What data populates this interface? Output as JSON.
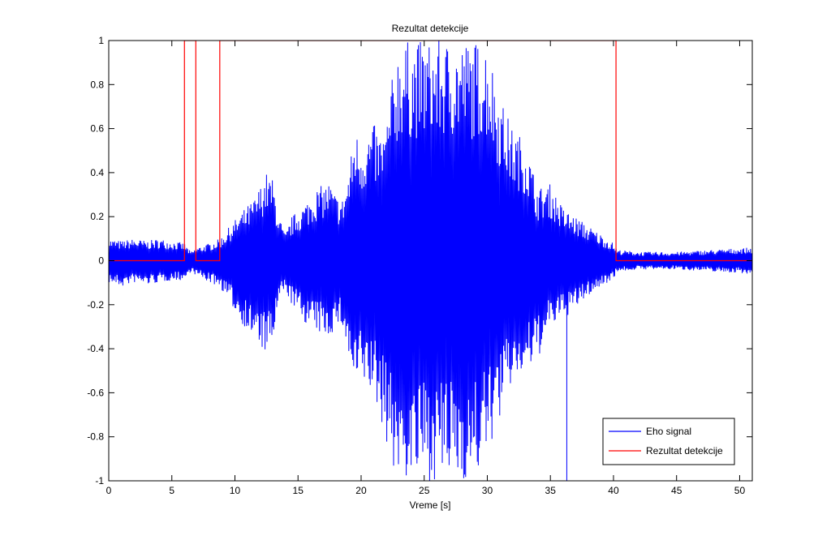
{
  "chart_data": {
    "type": "line",
    "title": "Rezultat detekcije",
    "xlabel": "Vreme [s]",
    "ylabel": "",
    "xlim": [
      0,
      51
    ],
    "ylim": [
      -1,
      1
    ],
    "x_ticks": [
      0,
      5,
      10,
      15,
      20,
      25,
      30,
      35,
      40,
      45,
      50
    ],
    "x_tick_labels": [
      "0",
      "5",
      "10",
      "15",
      "20",
      "25",
      "30",
      "35",
      "40",
      "45",
      "50"
    ],
    "y_ticks": [
      -1,
      -0.8,
      -0.6,
      -0.4,
      -0.2,
      0,
      0.2,
      0.4,
      0.6,
      0.8,
      1
    ],
    "y_tick_labels": [
      "-1",
      "-0.8",
      "-0.6",
      "-0.4",
      "-0.2",
      "0",
      "0.2",
      "0.4",
      "0.6",
      "0.8",
      "1"
    ],
    "grid": false,
    "legend_position": "bottom-right",
    "series": [
      {
        "name": "Eho signal",
        "color": "#0000ff",
        "style": "dense oscillating signal (envelope shown)",
        "envelope": {
          "x": [
            0,
            1,
            2,
            3,
            4,
            5,
            6,
            6.5,
            7,
            8,
            8.8,
            9.5,
            10.5,
            11.5,
            12.5,
            13.0,
            13.5,
            14.0,
            14.5,
            15.5,
            16.5,
            17.5,
            18.0,
            18.5,
            19.0,
            19.5,
            20.0,
            21.0,
            21.5,
            22.0,
            22.5,
            23.0,
            23.5,
            24.0,
            25.0,
            26.0,
            27.0,
            28.0,
            29.0,
            30.0,
            31.0,
            32.0,
            33.0,
            34.0,
            35.0,
            36.0,
            37.0,
            38.0,
            39.0,
            40.0,
            40.3,
            42,
            45,
            48,
            51
          ],
          "upper": [
            0.1,
            0.09,
            0.1,
            0.09,
            0.1,
            0.09,
            0.08,
            0.04,
            0.06,
            0.08,
            0.1,
            0.15,
            0.22,
            0.28,
            0.4,
            0.37,
            0.2,
            0.12,
            0.2,
            0.26,
            0.33,
            0.36,
            0.3,
            0.28,
            0.4,
            0.6,
            0.55,
            0.62,
            0.58,
            0.62,
            0.85,
            1.0,
            1.0,
            1.0,
            1.0,
            1.0,
            1.0,
            1.0,
            1.0,
            1.0,
            0.75,
            0.6,
            0.55,
            0.33,
            0.35,
            0.24,
            0.2,
            0.16,
            0.12,
            0.08,
            0.05,
            0.04,
            0.04,
            0.05,
            0.06
          ],
          "lower": [
            -0.1,
            -0.12,
            -0.1,
            -0.11,
            -0.1,
            -0.09,
            -0.09,
            -0.05,
            -0.07,
            -0.1,
            -0.12,
            -0.18,
            -0.28,
            -0.36,
            -0.43,
            -0.38,
            -0.18,
            -0.14,
            -0.2,
            -0.28,
            -0.33,
            -0.35,
            -0.3,
            -0.3,
            -0.45,
            -0.6,
            -0.55,
            -0.62,
            -0.72,
            -0.82,
            -0.95,
            -1.0,
            -1.0,
            -1.0,
            -1.0,
            -1.0,
            -1.0,
            -1.0,
            -1.0,
            -0.88,
            -0.72,
            -0.55,
            -0.52,
            -0.45,
            -0.3,
            -0.27,
            -0.22,
            -0.16,
            -0.12,
            -0.08,
            -0.05,
            -0.04,
            -0.04,
            -0.05,
            -0.06
          ]
        },
        "spike": {
          "x": 36.3,
          "y": -1
        }
      },
      {
        "name": "Rezultat detekcije",
        "color": "#ff0000",
        "style": "step",
        "x": [
          0,
          6.0,
          6.0,
          6.9,
          6.9,
          8.8,
          8.8,
          40.2,
          40.2,
          51
        ],
        "y": [
          0,
          0,
          1,
          1,
          0,
          0,
          1,
          1,
          0,
          0
        ]
      }
    ]
  }
}
